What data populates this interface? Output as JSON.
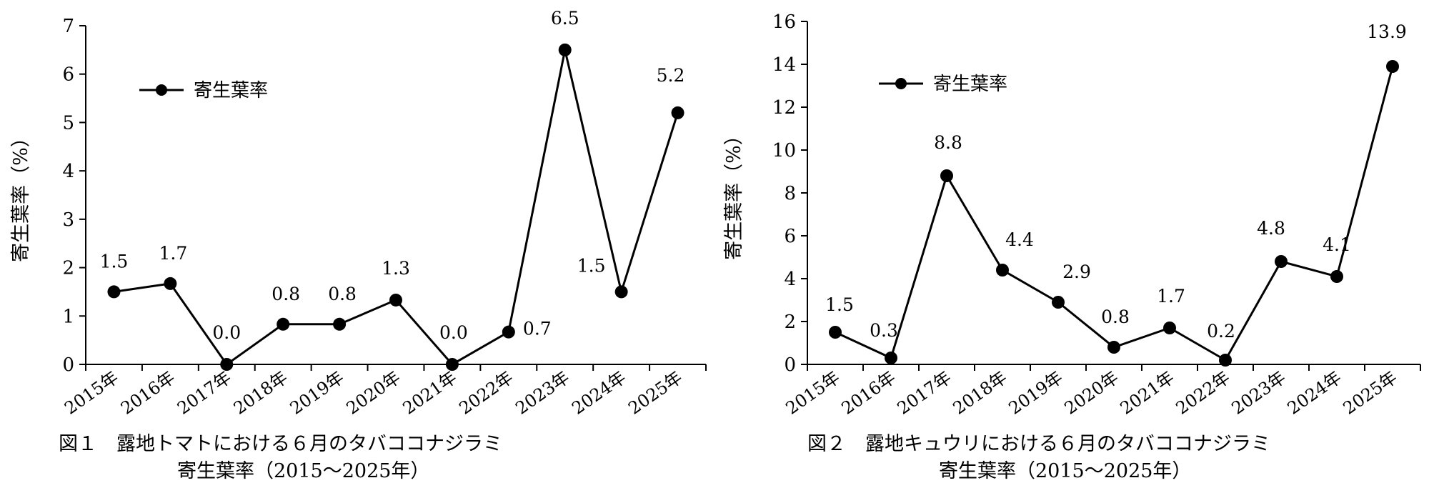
{
  "chart_data": [
    {
      "type": "line",
      "categories": [
        "2015年",
        "2016年",
        "2017年",
        "2018年",
        "2019年",
        "2020年",
        "2021年",
        "2022年",
        "2023年",
        "2024年",
        "2025年"
      ],
      "series": [
        {
          "name": "寄生葉率",
          "values": [
            1.5,
            1.67,
            0.0,
            0.83,
            0.83,
            1.33,
            0.0,
            0.67,
            6.5,
            1.5,
            5.2
          ]
        }
      ],
      "data_labels": [
        "1.5",
        "1.7",
        "0.0",
        "0.8",
        "0.8",
        "1.3",
        "0.0",
        "0.7",
        "6.5",
        "1.5",
        "5.2"
      ],
      "ylabel": "寄生葉率（%）",
      "xlabel": "",
      "ylim": [
        0,
        7
      ],
      "yticks": [
        "0",
        "1",
        "2",
        "3",
        "4",
        "5",
        "6",
        "7"
      ],
      "grid": false,
      "legend": "top-left",
      "caption_line1": "図１　露地トマトにおける６月のタバココナジラミ",
      "caption_line2": "寄生葉率（2015～2025年）",
      "color": "#000000"
    },
    {
      "type": "line",
      "categories": [
        "2015年",
        "2016年",
        "2017年",
        "2018年",
        "2019年",
        "2020年",
        "2021年",
        "2022年",
        "2023年",
        "2024年",
        "2025年"
      ],
      "series": [
        {
          "name": "寄生葉率",
          "values": [
            1.5,
            0.3,
            8.8,
            4.4,
            2.9,
            0.8,
            1.7,
            0.2,
            4.8,
            4.1,
            13.9
          ]
        }
      ],
      "data_labels": [
        "1.5",
        "0.3",
        "8.8",
        "4.4",
        "2.9",
        "0.8",
        "1.7",
        "0.2",
        "4.8",
        "4.1",
        "13.9"
      ],
      "ylabel": "寄生葉率（%）",
      "xlabel": "",
      "ylim": [
        0,
        16
      ],
      "yticks": [
        "0",
        "2",
        "4",
        "6",
        "8",
        "10",
        "12",
        "14",
        "16"
      ],
      "grid": false,
      "legend": "top-left",
      "caption_line1": "図２　露地キュウリにおける６月のタバココナジラミ",
      "caption_line2": "寄生葉率（2015～2025年）",
      "color": "#000000"
    }
  ]
}
